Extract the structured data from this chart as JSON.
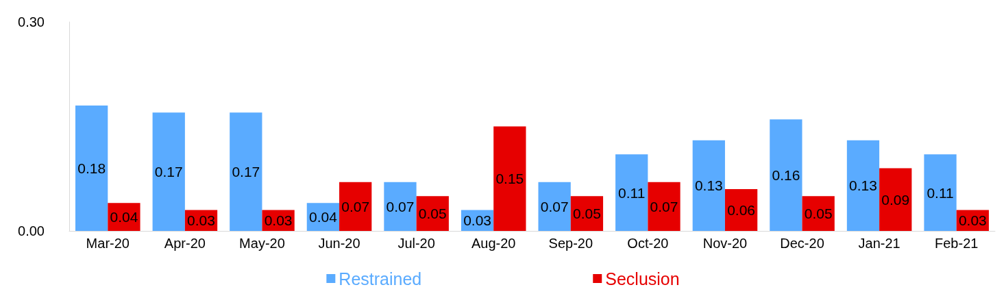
{
  "chart_data": {
    "type": "bar",
    "categories": [
      "Mar-20",
      "Apr-20",
      "May-20",
      "Jun-20",
      "Jul-20",
      "Aug-20",
      "Sep-20",
      "Oct-20",
      "Nov-20",
      "Dec-20",
      "Jan-21",
      "Feb-21"
    ],
    "series": [
      {
        "name": "Restrained",
        "color": "#5aabff",
        "values": [
          0.18,
          0.17,
          0.17,
          0.04,
          0.07,
          0.03,
          0.07,
          0.11,
          0.13,
          0.16,
          0.13,
          0.11
        ]
      },
      {
        "name": "Seclusion",
        "color": "#e60000",
        "values": [
          0.04,
          0.03,
          0.03,
          0.07,
          0.05,
          0.15,
          0.05,
          0.07,
          0.06,
          0.05,
          0.09,
          0.03
        ]
      }
    ],
    "ylim": [
      0,
      0.3
    ],
    "yticks": [
      {
        "value": 0,
        "label": "0.00"
      },
      {
        "value": 0.3,
        "label": "0.30"
      }
    ],
    "data_labels": true,
    "grid": false,
    "legend": "bottom"
  }
}
